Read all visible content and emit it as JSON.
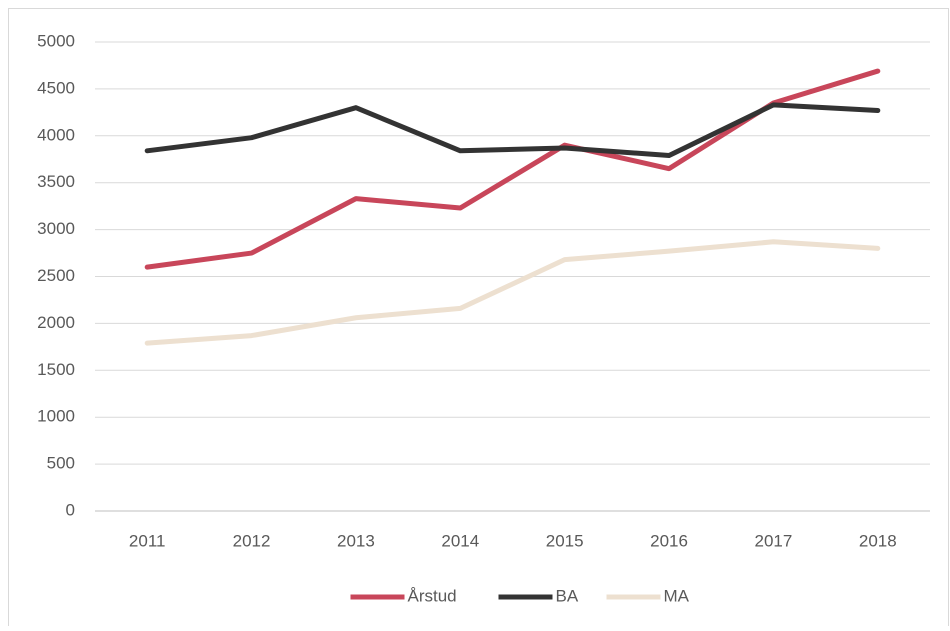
{
  "chart_data": {
    "type": "line",
    "categories": [
      "2011",
      "2012",
      "2013",
      "2014",
      "2015",
      "2016",
      "2017",
      "2018"
    ],
    "series": [
      {
        "name": "Årstud",
        "color": "#c8465a",
        "values": [
          2600,
          2750,
          3330,
          3230,
          3900,
          3650,
          4350,
          4690
        ]
      },
      {
        "name": "BA",
        "color": "#333333",
        "values": [
          3840,
          3980,
          4300,
          3840,
          3870,
          3790,
          4330,
          4270
        ]
      },
      {
        "name": "MA",
        "color": "#ede0d0",
        "values": [
          1790,
          1870,
          2060,
          2160,
          2680,
          2770,
          2870,
          2800
        ]
      }
    ],
    "ylim": [
      0,
      5000
    ],
    "yticks": [
      0,
      500,
      1000,
      1500,
      2000,
      2500,
      3000,
      3500,
      4000,
      4500,
      5000
    ],
    "grid": true,
    "legend": "bottom"
  }
}
